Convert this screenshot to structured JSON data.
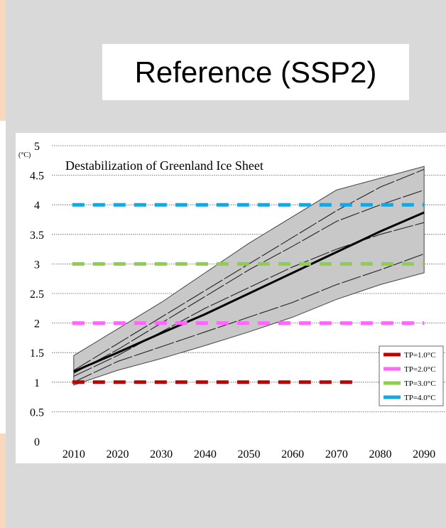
{
  "header": {
    "title": "Reference (SSP2)"
  },
  "chart_data": {
    "type": "line",
    "title": "Destabilization of Greenland Ice Sheet",
    "ylabel": "(°C)",
    "xlabel": "",
    "xlim": [
      2005,
      2095
    ],
    "ylim": [
      0,
      5
    ],
    "x_ticks": [
      2010,
      2020,
      2030,
      2040,
      2050,
      2060,
      2070,
      2080,
      2090
    ],
    "y_ticks": [
      "0",
      "0.5",
      "1",
      "1.5",
      "2",
      "2.5",
      "3",
      "3.5",
      "4",
      "4.5",
      "5"
    ],
    "grid": "horizontal dotted",
    "legend": "bottom-right",
    "band": {
      "x": [
        2010,
        2020,
        2030,
        2040,
        2050,
        2060,
        2070,
        2080,
        2090
      ],
      "lower": [
        0.95,
        1.2,
        1.4,
        1.62,
        1.85,
        2.1,
        2.4,
        2.65,
        2.85
      ],
      "upper": [
        1.45,
        1.9,
        2.35,
        2.85,
        3.35,
        3.8,
        4.25,
        4.45,
        4.65
      ]
    },
    "median": {
      "x": [
        2010,
        2020,
        2030,
        2040,
        2050,
        2060,
        2070,
        2080,
        2090
      ],
      "y": [
        1.18,
        1.5,
        1.83,
        2.15,
        2.5,
        2.85,
        3.2,
        3.55,
        3.87
      ]
    },
    "scenario_lines": [
      {
        "x": [
          2010,
          2020,
          2030,
          2040,
          2050,
          2060,
          2070,
          2080,
          2090
        ],
        "y": [
          1.2,
          1.65,
          2.1,
          2.55,
          3.0,
          3.45,
          3.9,
          4.3,
          4.6
        ]
      },
      {
        "x": [
          2010,
          2020,
          2030,
          2040,
          2050,
          2060,
          2070,
          2080,
          2090
        ],
        "y": [
          1.15,
          1.55,
          2.0,
          2.45,
          2.9,
          3.3,
          3.72,
          4.0,
          4.25
        ]
      },
      {
        "x": [
          2010,
          2020,
          2030,
          2040,
          2050,
          2060,
          2070,
          2080,
          2090
        ],
        "y": [
          1.1,
          1.45,
          1.85,
          2.25,
          2.6,
          2.95,
          3.25,
          3.5,
          3.7
        ]
      },
      {
        "x": [
          2010,
          2020,
          2030,
          2040,
          2050,
          2060,
          2070,
          2080,
          2090
        ],
        "y": [
          1.0,
          1.35,
          1.6,
          1.85,
          2.1,
          2.35,
          2.65,
          2.9,
          3.17
        ]
      }
    ],
    "thresholds": [
      {
        "name": "TP=1.0°C",
        "value": 1.0,
        "color": "#c00000",
        "end_x": 2075
      },
      {
        "name": "TP=2.0°C",
        "value": 2.0,
        "color": "#ff66ff",
        "end_x": 2090
      },
      {
        "name": "TP=3.0°C",
        "value": 3.0,
        "color": "#8ccf4d",
        "end_x": 2090
      },
      {
        "name": "TP=4.0°C",
        "value": 4.0,
        "color": "#18a6e0",
        "end_x": 2090
      }
    ],
    "colors": {
      "band": "#c8c8c8",
      "median": "#000000"
    }
  }
}
